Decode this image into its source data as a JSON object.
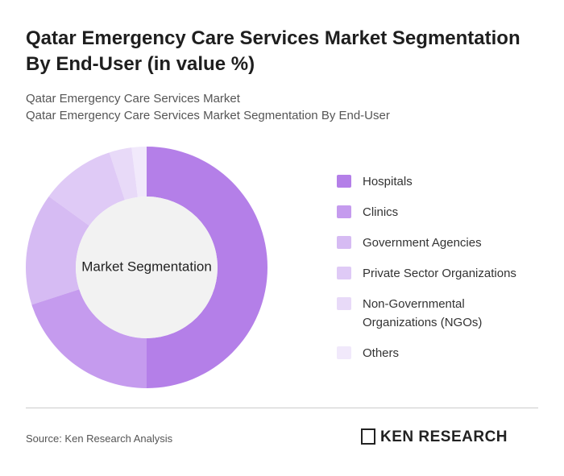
{
  "chart_data": {
    "type": "donut",
    "title": "Qatar Emergency Care Services Market Segmentation By End-User (in value %)",
    "subtitle": [
      "Qatar Emergency Care Services Market",
      "Qatar Emergency Care Services Market Segmentation By End-User"
    ],
    "center_label": "Market Segmentation",
    "categories": [
      "Hospitals",
      "Clinics",
      "Government Agencies",
      "Private Sector Organizations",
      "Non-Governmental Organizations (NGOs)",
      "Others"
    ],
    "values": [
      50,
      20,
      15,
      10,
      3,
      2
    ],
    "colors": [
      "#b47fe8",
      "#c59bee",
      "#d6bbf3",
      "#dfcaf6",
      "#e8daf8",
      "#f1e9fb"
    ],
    "source": "Source: Ken Research Analysis",
    "logo": "KEN RESEARCH"
  }
}
